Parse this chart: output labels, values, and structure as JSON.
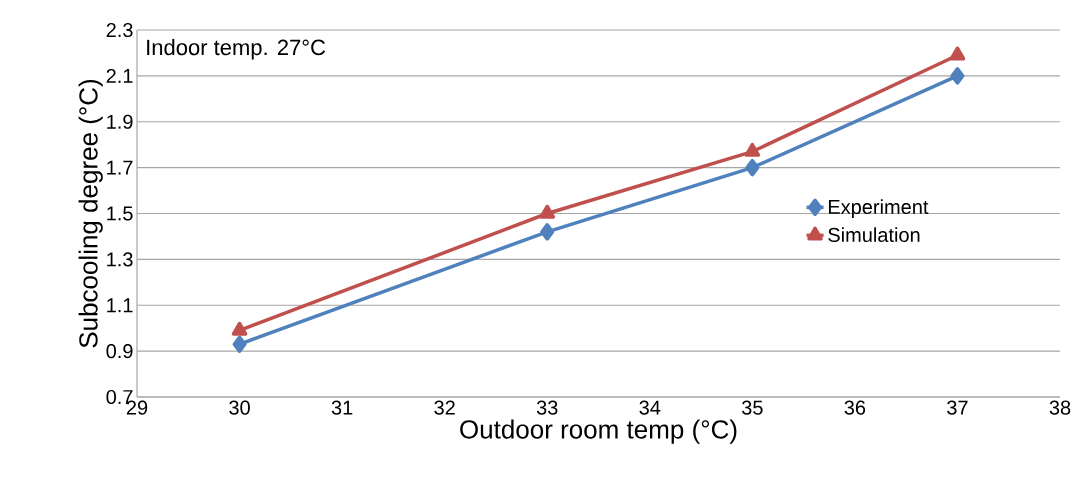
{
  "chart_data": {
    "type": "line",
    "xlabel": "Outdoor room temp (°C)",
    "ylabel": "Subcooling degree (°C)",
    "annotations": [
      "Indoor temp.  27°C"
    ],
    "x": [
      30,
      33,
      35,
      37
    ],
    "series": [
      {
        "name": "Experiment",
        "color": "#4f81bd",
        "marker": "diamond",
        "values": [
          0.93,
          1.42,
          1.7,
          2.1
        ]
      },
      {
        "name": "Simulation",
        "color": "#c0504d",
        "marker": "triangle",
        "values": [
          0.99,
          1.5,
          1.77,
          2.19
        ]
      }
    ],
    "xlim": [
      29,
      38
    ],
    "xticks": [
      29,
      30,
      31,
      32,
      33,
      34,
      35,
      36,
      37,
      38
    ],
    "ylim": [
      0.7,
      2.3
    ],
    "yticks": [
      {
        "value": 0.7,
        "label": "0.7"
      },
      {
        "value": 0.9,
        "label": "0.9"
      },
      {
        "value": 1.1,
        "label": "1.1"
      },
      {
        "value": 1.3,
        "label": "1.3"
      },
      {
        "value": 1.5,
        "label": "1.5"
      },
      {
        "value": 1.7,
        "label": "1.7"
      },
      {
        "value": 1.9,
        "label": "1.9"
      },
      {
        "value": 2.1,
        "label": "2.1"
      },
      {
        "value": 2.3,
        "label": "2.3"
      }
    ],
    "grid": "y",
    "legend": "right",
    "line_style": "solid"
  }
}
